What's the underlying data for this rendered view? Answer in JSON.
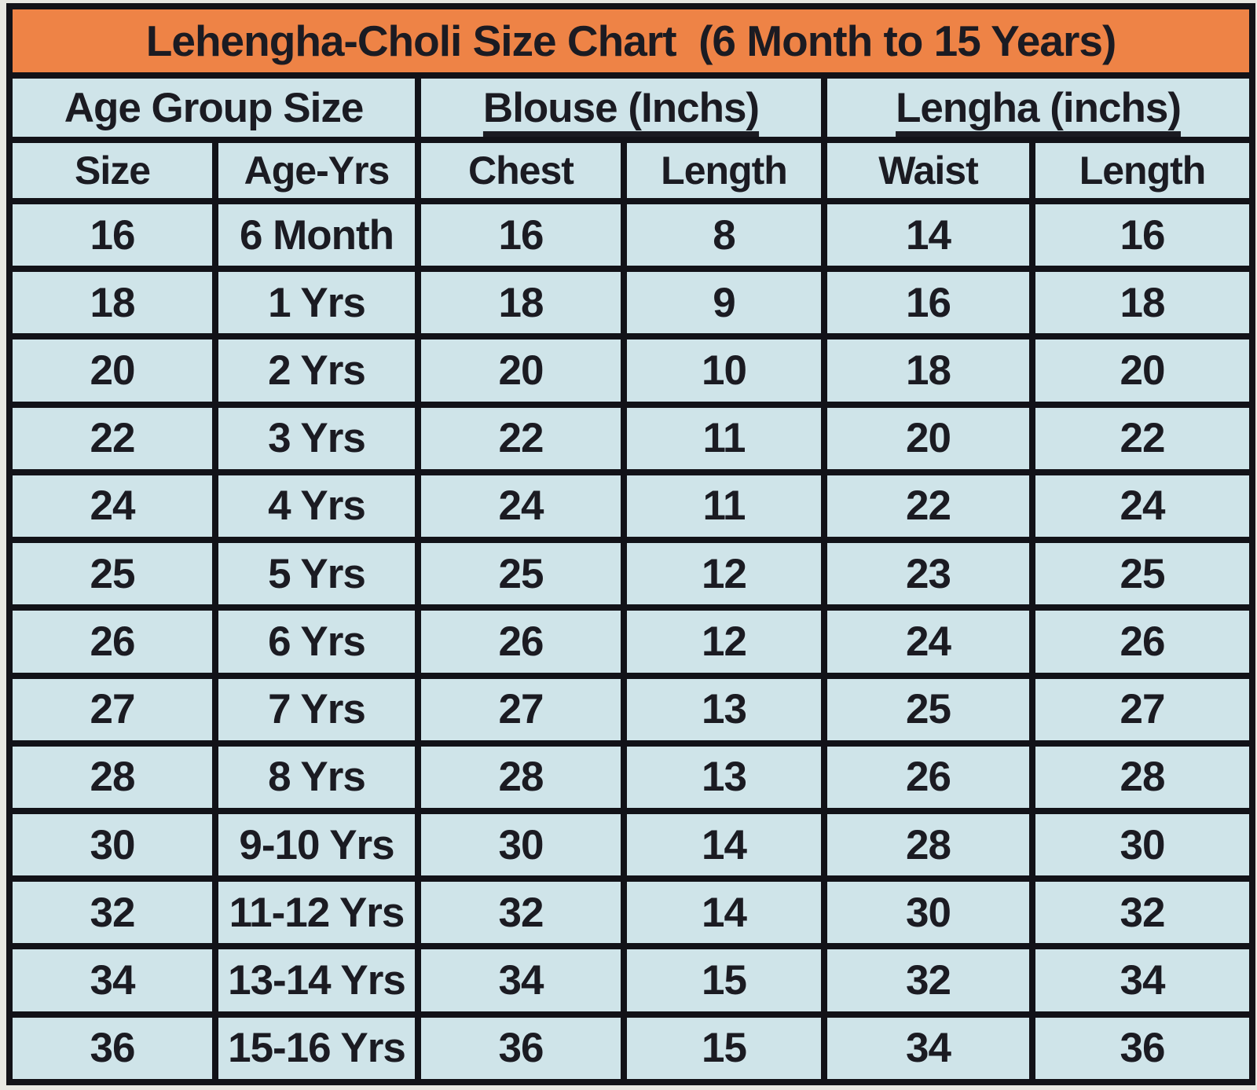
{
  "chart_data": {
    "type": "table",
    "title": "Lehengha-Choli Size Chart  (6 Month to 15 Years)",
    "column_groups": [
      "Age Group Size",
      "Blouse (Inchs)",
      "Lengha (inchs)"
    ],
    "columns": [
      "Size",
      "Age-Yrs",
      "Chest",
      "Length",
      "Waist",
      "Length"
    ],
    "rows": [
      [
        "16",
        "6 Month",
        "16",
        "8",
        "14",
        "16"
      ],
      [
        "18",
        "1 Yrs",
        "18",
        "9",
        "16",
        "18"
      ],
      [
        "20",
        "2 Yrs",
        "20",
        "10",
        "18",
        "20"
      ],
      [
        "22",
        "3 Yrs",
        "22",
        "11",
        "20",
        "22"
      ],
      [
        "24",
        "4 Yrs",
        "24",
        "11",
        "22",
        "24"
      ],
      [
        "25",
        "5 Yrs",
        "25",
        "12",
        "23",
        "25"
      ],
      [
        "26",
        "6 Yrs",
        "26",
        "12",
        "24",
        "26"
      ],
      [
        "27",
        "7 Yrs",
        "27",
        "13",
        "25",
        "27"
      ],
      [
        "28",
        "8 Yrs",
        "28",
        "13",
        "26",
        "28"
      ],
      [
        "30",
        "9-10 Yrs",
        "30",
        "14",
        "28",
        "30"
      ],
      [
        "32",
        "11-12 Yrs",
        "32",
        "14",
        "30",
        "32"
      ],
      [
        "34",
        "13-14 Yrs",
        "34",
        "15",
        "32",
        "34"
      ],
      [
        "36",
        "15-16 Yrs",
        "36",
        "15",
        "34",
        "36"
      ]
    ],
    "layout": {
      "grid": "on",
      "age_group_span_columns": [
        "Size",
        "Age-Yrs"
      ],
      "blouse_span_columns": [
        "Chest",
        "Length"
      ],
      "lengha_span_columns": [
        "Waist",
        "Length"
      ]
    }
  },
  "colors": {
    "title_bg": "#ee8346",
    "cell_bg": "#cfe4e9",
    "border": "#121218",
    "text": "#1b1b22",
    "page_bg": "#e7e7e2"
  }
}
